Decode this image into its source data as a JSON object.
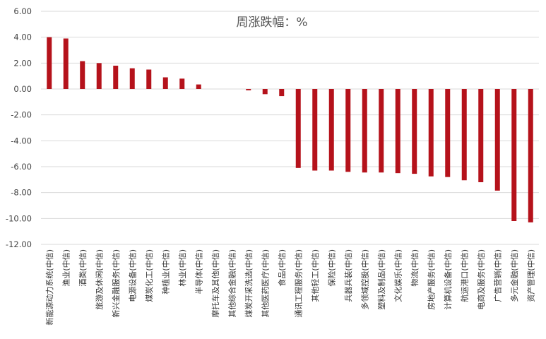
{
  "chart_data": {
    "type": "bar",
    "title": "周涨跌幅：%",
    "xlabel": "",
    "ylabel": "",
    "ylim": [
      -12,
      6
    ],
    "yticks": [
      "6.00",
      "4.00",
      "2.00",
      "0.00",
      "-2.00",
      "-4.00",
      "-6.00",
      "-8.00",
      "-10.00",
      "-12.00"
    ],
    "grid": true,
    "legend": "none",
    "bar_color": "#b5121b",
    "categories": [
      "新能源动力系统(中信)",
      "渔业(中信)",
      "酒类(中信)",
      "旅游及休闲(中信)",
      "新兴金融服务(中信)",
      "电源设备(中信)",
      "煤炭化工(中信)",
      "种植业(中信)",
      "林业(中信)",
      "半导体(中信)",
      "摩托车及其他(中信)",
      "其他综合金融(中信)",
      "煤炭开采洗选(中信)",
      "其他医药医疗(中信)",
      "食品(中信)",
      "通讯工程服务(中信)",
      "其他轻工(中信)",
      "保险(中信)",
      "兵器兵装(中信)",
      "多领域控股(中信)",
      "塑料及制品(中信)",
      "文化娱乐(中信)",
      "物流(中信)",
      "房地产服务(中信)",
      "计算机设备(中信)",
      "航运港口(中信)",
      "电商及服务(中信)",
      "广告营销(中信)",
      "多元金融(中信)",
      "资产管理(中信)"
    ],
    "values": [
      4.0,
      3.9,
      2.15,
      2.0,
      1.8,
      1.6,
      1.5,
      0.9,
      0.8,
      0.35,
      0.0,
      0.0,
      -0.1,
      -0.4,
      -0.55,
      -6.1,
      -6.3,
      -6.3,
      -6.4,
      -6.45,
      -6.45,
      -6.5,
      -6.55,
      -6.75,
      -6.8,
      -7.05,
      -7.2,
      -7.85,
      -10.2,
      -10.3
    ]
  }
}
